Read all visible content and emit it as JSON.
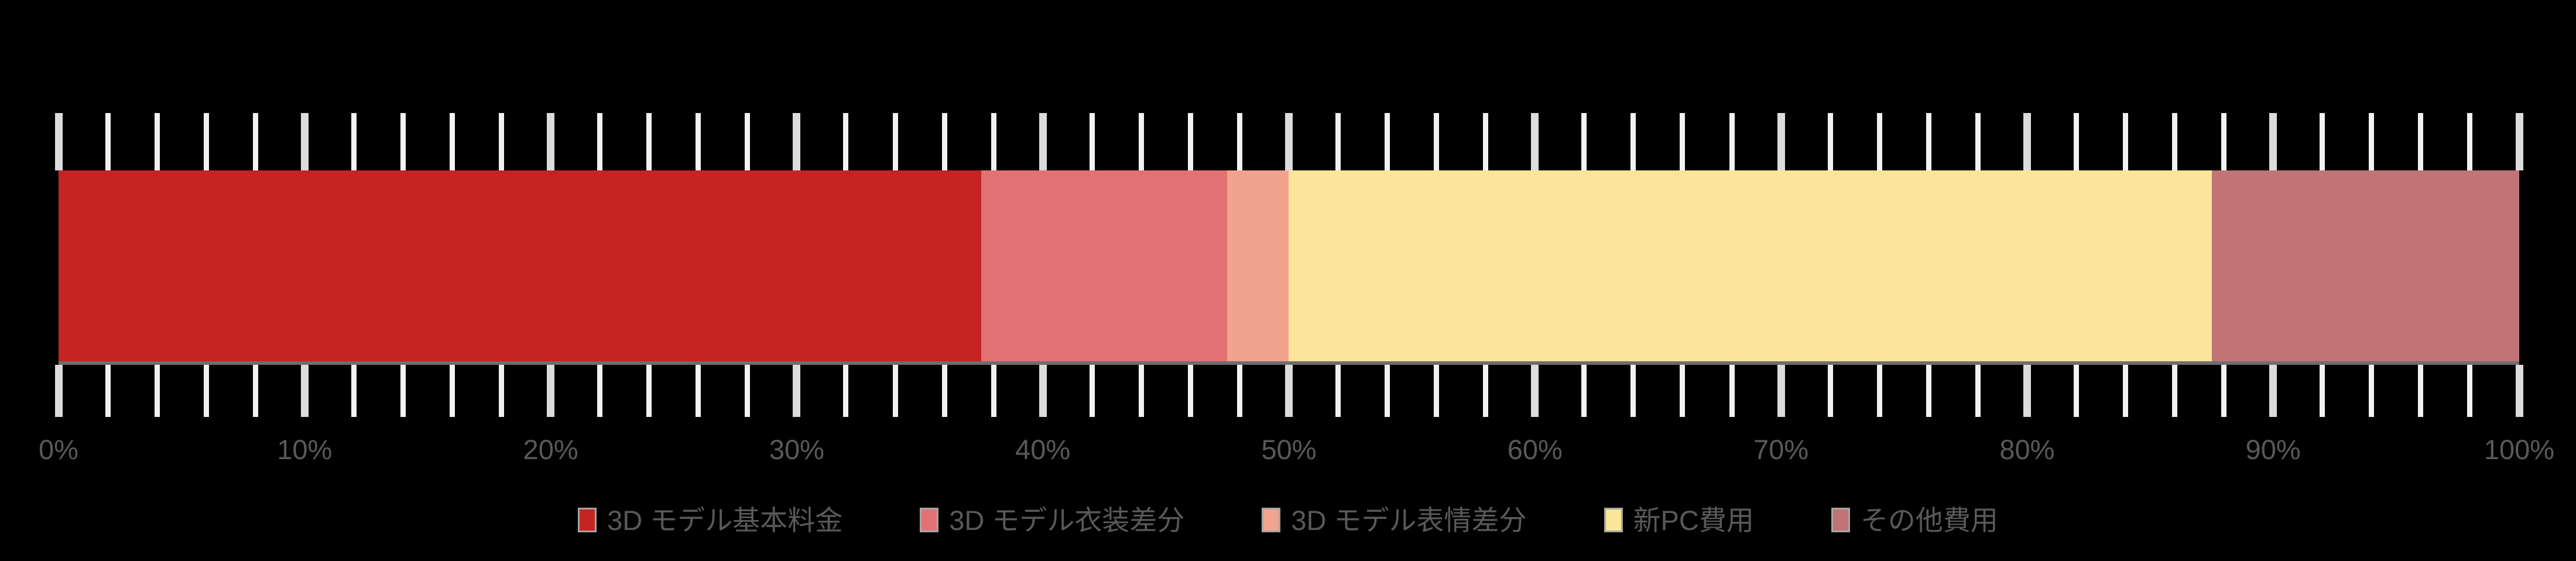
{
  "chart_data": {
    "type": "bar",
    "subtype": "stacked-100-horizontal",
    "title": "",
    "xlabel": "",
    "ylabel": "",
    "categories": [
      ""
    ],
    "series": [
      {
        "name": "3D モデル基本料金",
        "values": [
          37.5
        ],
        "color": "#c42523"
      },
      {
        "name": "3D モデル衣装差分",
        "values": [
          10.0
        ],
        "color": "#e27173"
      },
      {
        "name": "3D モデル表情差分",
        "values": [
          2.5
        ],
        "color": "#f1a38f"
      },
      {
        "name": "新PC費用",
        "values": [
          37.5
        ],
        "color": "#fce49b"
      },
      {
        "name": "その他費用",
        "values": [
          12.5
        ],
        "color": "#c07476"
      }
    ],
    "xlim": [
      0,
      100
    ],
    "x_major_unit": 10,
    "x_minor_unit": 2,
    "x_tick_labels": [
      "0%",
      "10%",
      "20%",
      "30%",
      "40%",
      "50%",
      "60%",
      "70%",
      "80%",
      "90%",
      "100%"
    ],
    "grid": true,
    "legend_position": "bottom"
  },
  "colors": {
    "background": "#000000",
    "grid_minor": "#f2f2f2",
    "grid_major": "#dcdcdc",
    "axis_line": "#6e6e6e",
    "tick_label_text": "#595959",
    "legend_text": "#595959",
    "swatch_border": "#a6a6a6"
  }
}
